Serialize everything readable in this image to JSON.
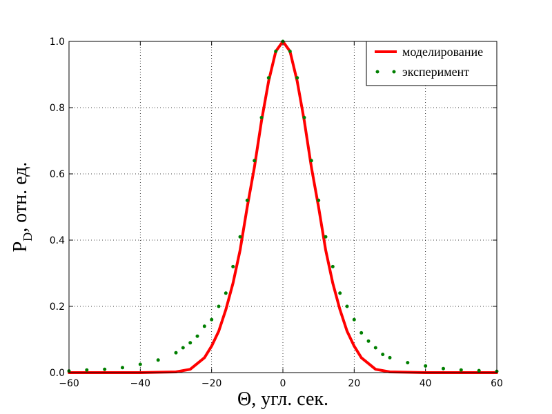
{
  "chart_data": {
    "type": "line",
    "xlabel": "Θ, угл. сек.",
    "ylabel_main": "P",
    "ylabel_sub": "D",
    "ylabel_rest": ", отн. ед.",
    "xlim": [
      -60,
      60
    ],
    "ylim": [
      0,
      1.0
    ],
    "xticks": [
      -60,
      -40,
      -20,
      0,
      20,
      40,
      60
    ],
    "xtick_labels": [
      "−60",
      "−40",
      "−20",
      "0",
      "20",
      "40",
      "60"
    ],
    "yticks": [
      0,
      0.2,
      0.4,
      0.6,
      0.8,
      1.0
    ],
    "ytick_labels": [
      "0.0",
      "0.2",
      "0.4",
      "0.6",
      "0.8",
      "1.0"
    ],
    "grid": true,
    "legend_position": "top-right",
    "series": [
      {
        "name": "моделирование",
        "style": "line",
        "color": "#ff0000",
        "x": [
          -60,
          -40,
          -30,
          -26,
          -22,
          -20,
          -18,
          -16,
          -14,
          -12,
          -10,
          -8,
          -6,
          -4,
          -2,
          0,
          2,
          4,
          6,
          8,
          10,
          12,
          14,
          16,
          18,
          20,
          22,
          26,
          30,
          40,
          60
        ],
        "y": [
          0.0,
          0.0,
          0.002,
          0.01,
          0.045,
          0.08,
          0.125,
          0.19,
          0.27,
          0.37,
          0.5,
          0.62,
          0.76,
          0.88,
          0.97,
          1.0,
          0.97,
          0.88,
          0.76,
          0.62,
          0.5,
          0.37,
          0.27,
          0.19,
          0.125,
          0.08,
          0.045,
          0.01,
          0.002,
          0.0,
          0.0
        ]
      },
      {
        "name": "эксперимент",
        "style": "scatter",
        "color": "#007f00",
        "x": [
          -60,
          -55,
          -50,
          -45,
          -40,
          -35,
          -30,
          -28,
          -26,
          -24,
          -22,
          -20,
          -18,
          -16,
          -14,
          -12,
          -10,
          -8,
          -6,
          -4,
          -2,
          0,
          2,
          4,
          6,
          8,
          10,
          12,
          14,
          16,
          18,
          20,
          22,
          24,
          26,
          28,
          30,
          35,
          40,
          45,
          50,
          55,
          60
        ],
        "y": [
          0.005,
          0.008,
          0.01,
          0.015,
          0.025,
          0.038,
          0.06,
          0.075,
          0.09,
          0.11,
          0.14,
          0.16,
          0.2,
          0.24,
          0.32,
          0.41,
          0.52,
          0.64,
          0.77,
          0.89,
          0.97,
          1.0,
          0.97,
          0.89,
          0.77,
          0.64,
          0.52,
          0.41,
          0.32,
          0.24,
          0.2,
          0.16,
          0.12,
          0.095,
          0.075,
          0.055,
          0.045,
          0.03,
          0.02,
          0.012,
          0.008,
          0.006,
          0.004
        ]
      }
    ]
  }
}
